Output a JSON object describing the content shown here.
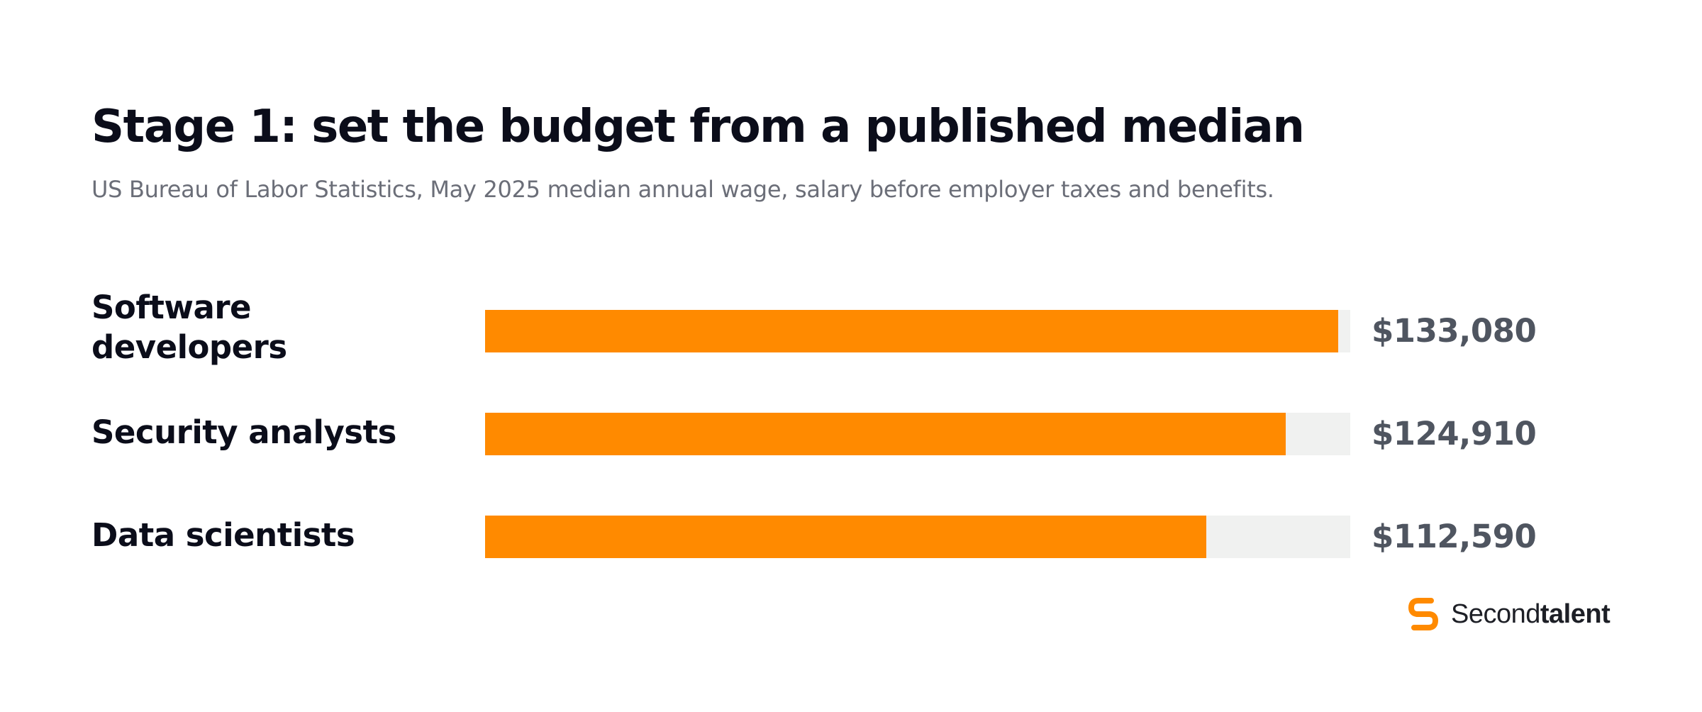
{
  "chart_data": {
    "type": "bar",
    "orientation": "horizontal",
    "title": "Stage 1: set the budget from a published median",
    "subtitle": "US Bureau of Labor Statistics, May 2025 median annual wage, salary before employer taxes and benefits.",
    "categories": [
      "Software developers",
      "Security analysts",
      "Data scientists"
    ],
    "values": [
      133080,
      124910,
      112590
    ],
    "value_labels": [
      "$133,080",
      "$124,910",
      "$112,590"
    ],
    "xlim": [
      0,
      135000
    ],
    "grid": false,
    "legend": "none",
    "colors": {
      "bar": "#ff8a00",
      "track": "#f0f1f0"
    }
  },
  "brand": {
    "icon": "secondtalent-logo-icon",
    "name_regular": "Second",
    "name_bold": "talent",
    "color": "#ff8a00"
  }
}
